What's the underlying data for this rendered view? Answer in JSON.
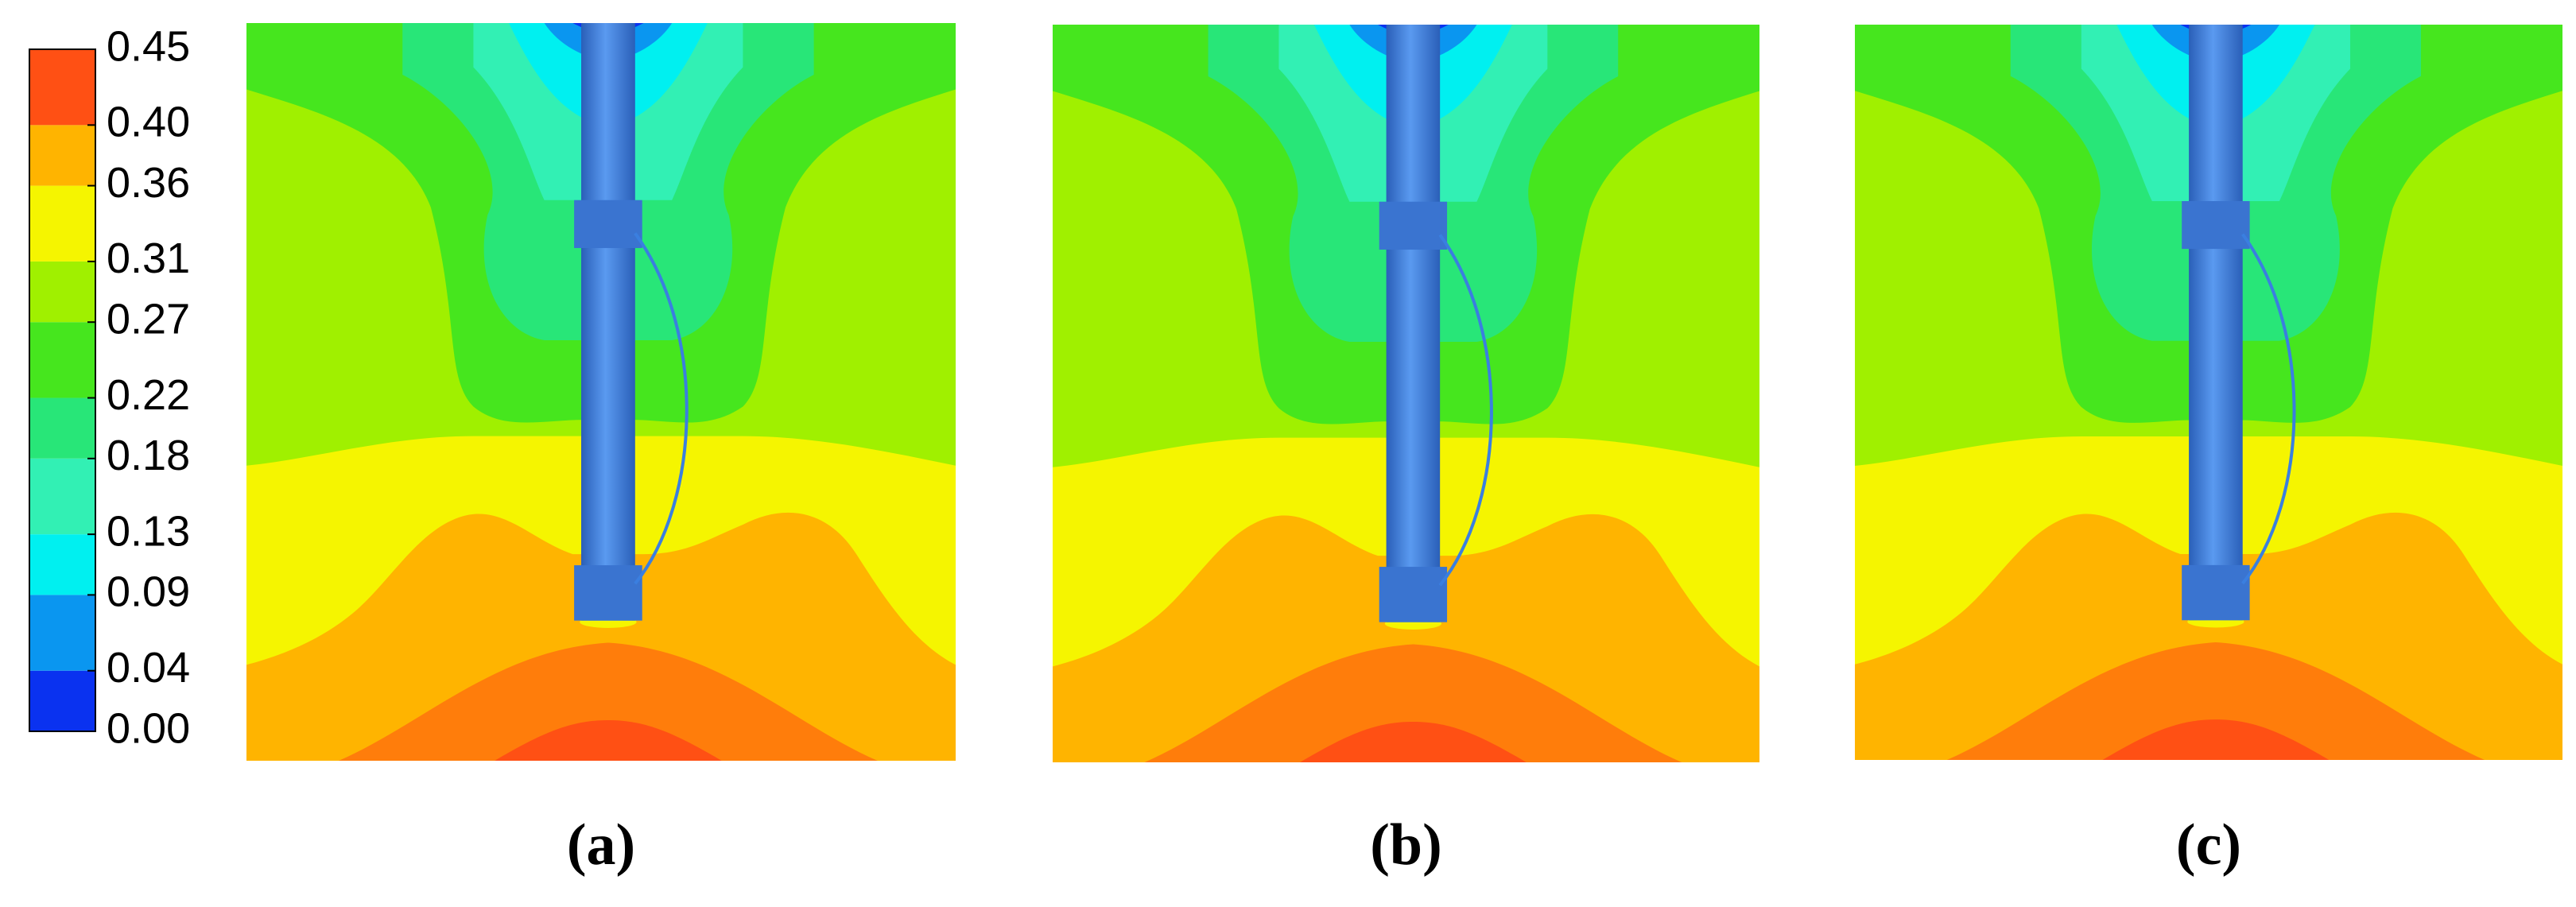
{
  "chart_data": {
    "type": "contour",
    "panels": [
      "(a)",
      "(b)",
      "(c)"
    ],
    "zlim": [
      0,
      0.45
    ],
    "colorbar_ticks": [
      {
        "value": 0,
        "label": "0.00"
      },
      0.04,
      0.09,
      0.13,
      0.18,
      0.22,
      0.27,
      0.31,
      0.36,
      {
        "value": 0.4,
        "label": "0.40"
      },
      0.45
    ],
    "colors": [
      "#0a32f0",
      "#0a96f0",
      "#00f0f0",
      "#32f0b4",
      "#28e678",
      "#46e61e",
      "#a0f000",
      "#f5f500",
      "#ffb400",
      "#ff5014"
    ]
  }
}
